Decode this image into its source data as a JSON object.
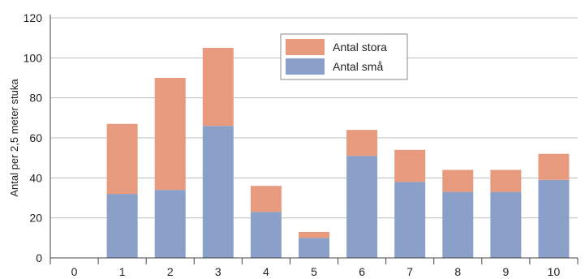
{
  "chart_data": {
    "type": "bar",
    "stacked": true,
    "categories": [
      "0",
      "1",
      "2",
      "3",
      "4",
      "5",
      "6",
      "7",
      "8",
      "9",
      "10"
    ],
    "series": [
      {
        "name": "Antal små",
        "color": "#8ba0c8",
        "values": [
          0,
          32,
          34,
          66,
          23,
          10,
          51,
          38,
          33,
          33,
          39
        ]
      },
      {
        "name": "Antal stora",
        "color": "#e89a7e",
        "values": [
          0,
          35,
          56,
          39,
          13,
          3,
          13,
          16,
          11,
          11,
          13
        ]
      }
    ],
    "legend_order": [
      "Antal stora",
      "Antal små"
    ],
    "ylabel": "Antal per 2,5 meter stuka",
    "xlabel": "",
    "ylim": [
      0,
      120
    ],
    "yticks": [
      "0",
      "20",
      "40",
      "60",
      "80",
      "100",
      "120"
    ],
    "grid": true,
    "legend_position": "top-center"
  }
}
